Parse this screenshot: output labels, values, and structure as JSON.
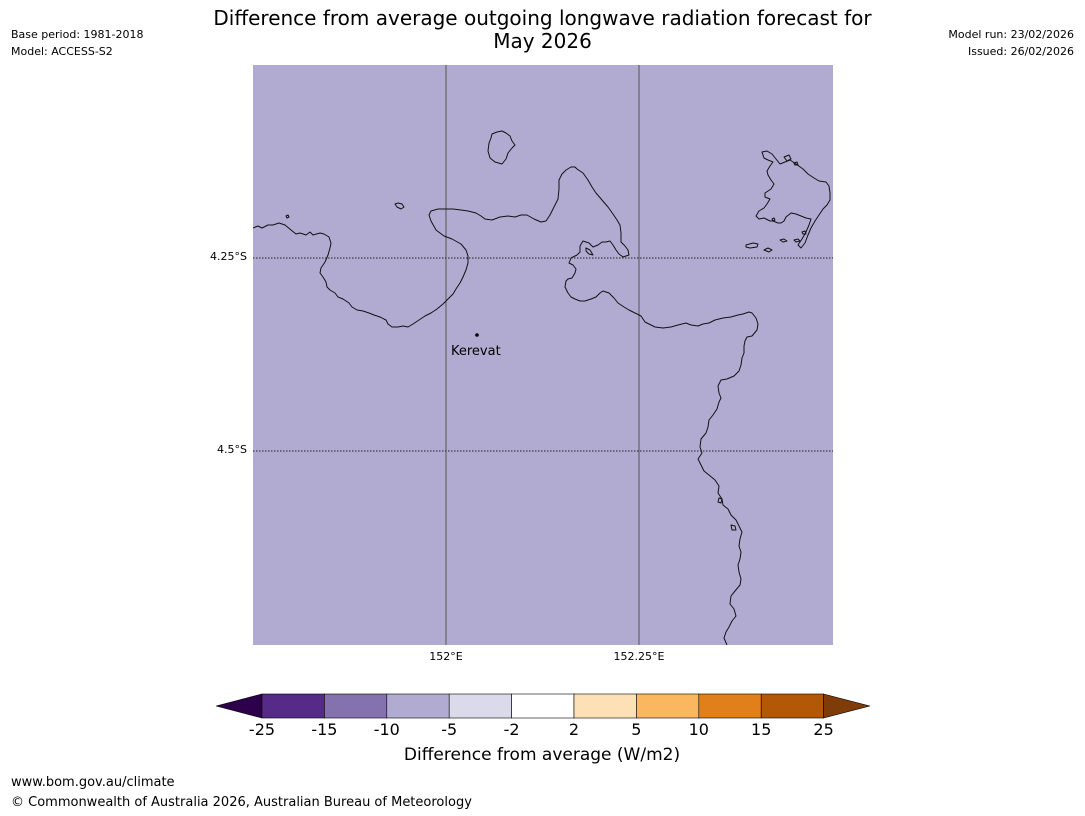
{
  "header": {
    "base_period": "Base period: 1981-2018",
    "model": "Model: ACCESS-S2",
    "model_run": "Model run: 23/02/2026",
    "issued": "Issued: 26/02/2026",
    "title_line1": "Difference from average outgoing longwave radiation forecast for",
    "title_line2": "May 2026"
  },
  "map": {
    "fill_color": "#b1abd2",
    "coast_color": "#111111",
    "place": {
      "name": "Kerevat"
    },
    "lat_labels": [
      "4.25°S",
      "4.5°S"
    ],
    "lon_labels": [
      "152°E",
      "152.25°E"
    ]
  },
  "colorbar": {
    "label": "Difference from average (W/m2)",
    "ticks": [
      "-25",
      "-15",
      "-10",
      "-5",
      "-2",
      "2",
      "5",
      "10",
      "15",
      "25"
    ],
    "colors": [
      "#562a89",
      "#8372ad",
      "#b1abd2",
      "#dadaeb",
      "#ffffff",
      "#fee0b6",
      "#fbb660",
      "#e1801a",
      "#b35807"
    ],
    "extend_low_color": "#2d004b",
    "extend_high_color": "#7f3b08"
  },
  "footer": {
    "url": "www.bom.gov.au/climate",
    "copyright": "© Commonwealth of Australia 2026, Australian Bureau of Meteorology"
  }
}
